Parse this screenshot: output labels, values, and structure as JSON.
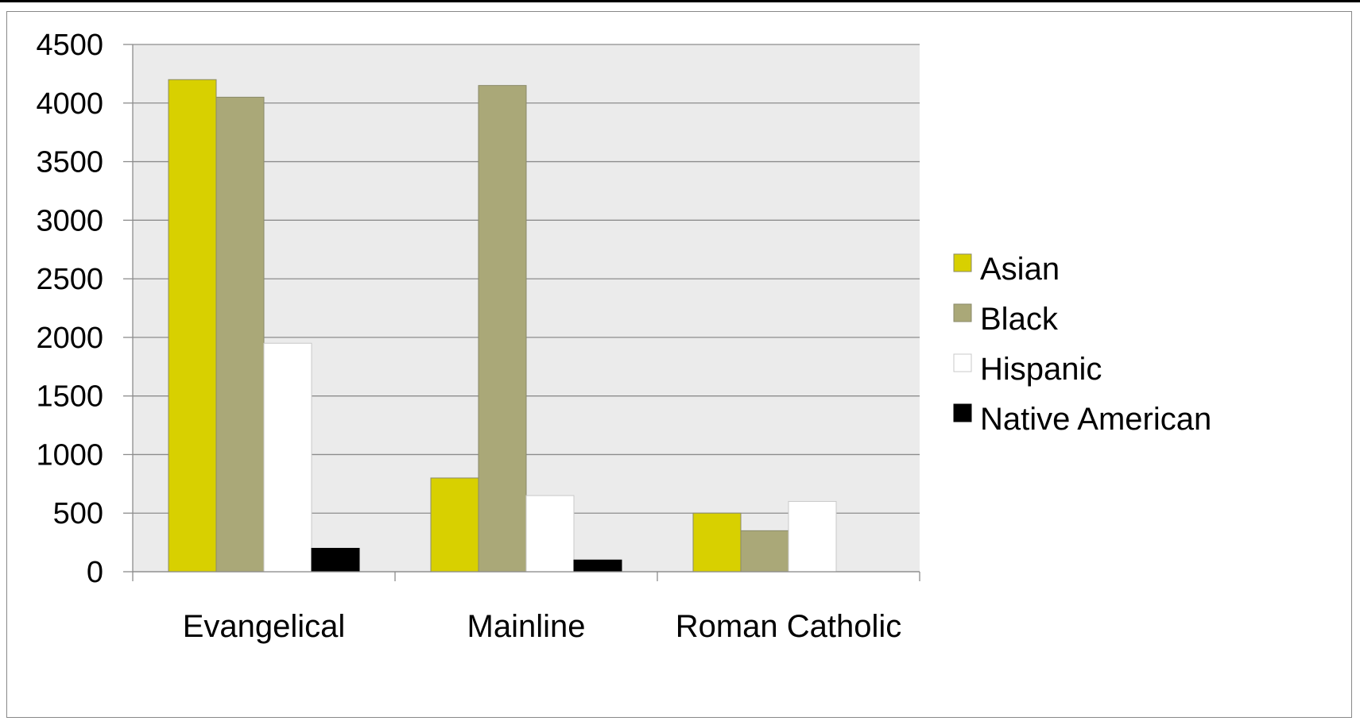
{
  "chart_data": {
    "type": "bar",
    "title": "",
    "xlabel": "",
    "ylabel": "",
    "categories": [
      "Evangelical",
      "Mainline",
      "Roman Catholic"
    ],
    "series": [
      {
        "name": "Asian",
        "values": [
          4200,
          800,
          500
        ],
        "color": "#d8d000"
      },
      {
        "name": "Black",
        "values": [
          4050,
          4150,
          350
        ],
        "color": "#aaa878"
      },
      {
        "name": "Hispanic",
        "values": [
          1950,
          650,
          600
        ],
        "color": "#ffffff"
      },
      {
        "name": "Native American",
        "values": [
          200,
          100,
          0
        ],
        "color": "#000000"
      }
    ],
    "ylim": [
      0,
      4500
    ],
    "yticks": [
      "0",
      "500",
      "1000",
      "1500",
      "2000",
      "2500",
      "3000",
      "3500",
      "4000",
      "4500"
    ],
    "grid": true,
    "plot_background": "#ebebeb",
    "legend_position": "right"
  }
}
